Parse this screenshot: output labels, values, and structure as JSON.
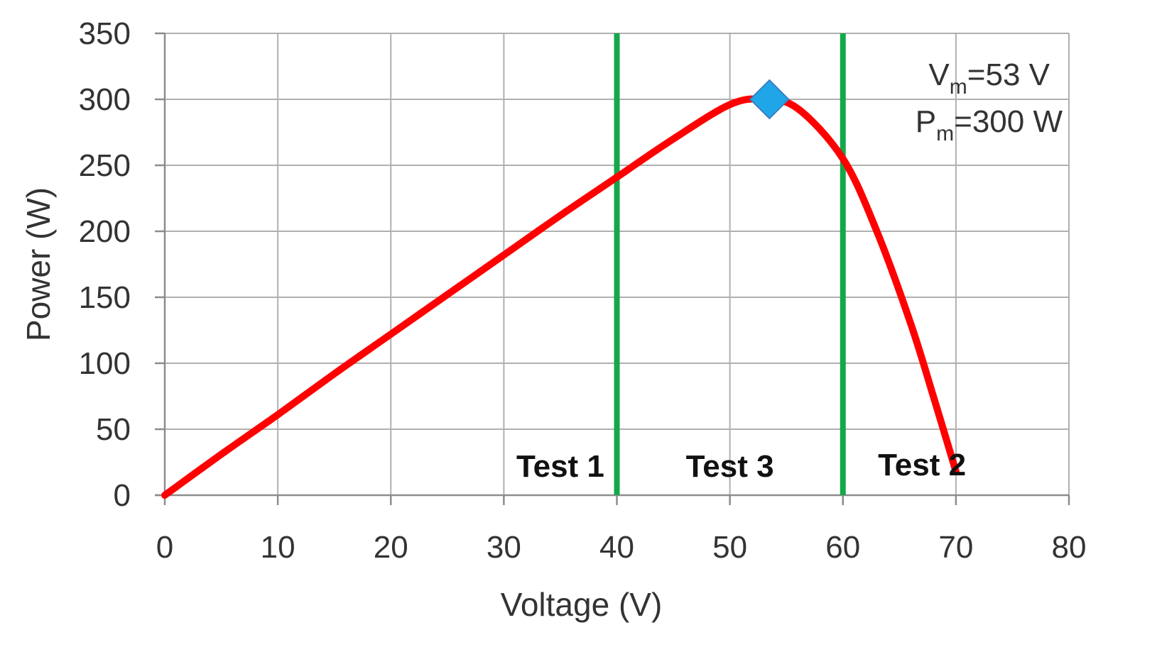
{
  "chart_data": {
    "type": "line",
    "title": "",
    "xlabel": "Voltage (V)",
    "ylabel": "Power (W)",
    "xlim": [
      0,
      80
    ],
    "ylim": [
      0,
      350
    ],
    "xticks": [
      0,
      10,
      20,
      30,
      40,
      50,
      60,
      70,
      80
    ],
    "yticks": [
      0,
      50,
      100,
      150,
      200,
      250,
      300,
      350
    ],
    "grid": true,
    "legend": "none",
    "series": [
      {
        "color": "#ff0000",
        "x": [
          0,
          5,
          10,
          15,
          20,
          25,
          30,
          35,
          40,
          45,
          50,
          53,
          56,
          60,
          63,
          66,
          68,
          70
        ],
        "y": [
          0,
          31,
          61,
          92,
          122,
          152,
          182,
          212,
          241,
          270,
          296,
          300,
          293,
          255,
          200,
          130,
          75,
          18
        ]
      }
    ],
    "marker": {
      "x": 53.5,
      "y": 300,
      "color": "#1ea6e8",
      "shape": "diamond"
    },
    "vertical_lines": [
      {
        "x": 40,
        "color": "#13a84a"
      },
      {
        "x": 60,
        "color": "#13a84a"
      }
    ],
    "region_labels": [
      {
        "text": "Test 1",
        "x": 35,
        "y": 22
      },
      {
        "text": "Test 3",
        "x": 50,
        "y": 22
      },
      {
        "text": "Test 2",
        "x": 67,
        "y": 23
      }
    ],
    "annotations": {
      "vm": {
        "main": "V",
        "sub": "m",
        "rest": "=53 V"
      },
      "pm": {
        "main": "P",
        "sub": "m",
        "rest": "=300 W"
      }
    },
    "colors": {
      "curve": "#ff0000",
      "marker": "#1ea6e8",
      "test_lines": "#13a84a",
      "grid": "#b0b0b0"
    }
  }
}
